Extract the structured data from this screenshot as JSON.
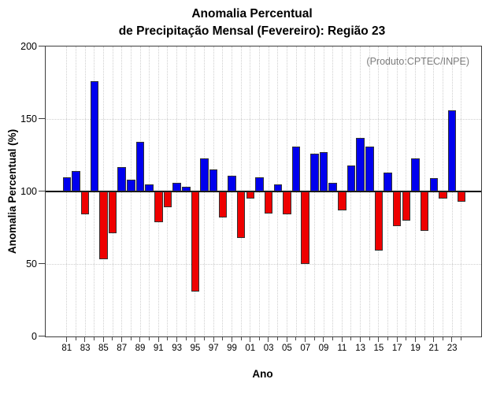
{
  "title": {
    "line1": "Anomalia Percentual",
    "line2": "de Precipitação Mensal (Fevereiro): Região 23"
  },
  "annotation": "(Produto:CPTEC/INPE)",
  "chart_data": {
    "type": "bar",
    "title": "Anomalia Percentual de Precipitação Mensal (Fevereiro): Região 23",
    "xlabel": "Ano",
    "ylabel": "Anomalia Percentual (%)",
    "ylim": [
      0,
      200
    ],
    "yticks": [
      0,
      50,
      100,
      150,
      200
    ],
    "hgrid_at": [
      50,
      150
    ],
    "baseline": 100,
    "legend_position": "none",
    "grid": "dotted vertical line per year; dotted horizontal at 50 and 150; solid black line at 100",
    "categories": [
      "1981",
      "1982",
      "1983",
      "1984",
      "1985",
      "1986",
      "1987",
      "1988",
      "1989",
      "1990",
      "1991",
      "1992",
      "1993",
      "1994",
      "1995",
      "1996",
      "1997",
      "1998",
      "1999",
      "2000",
      "2001",
      "2002",
      "2003",
      "2004",
      "2005",
      "2006",
      "2007",
      "2008",
      "2009",
      "2010",
      "2011",
      "2012",
      "2013",
      "2014",
      "2015",
      "2016",
      "2017",
      "2018",
      "2019",
      "2020",
      "2021",
      "2022",
      "2023",
      "2024"
    ],
    "x_tick_labels": [
      "81",
      "83",
      "85",
      "87",
      "89",
      "91",
      "93",
      "95",
      "97",
      "99",
      "01",
      "03",
      "05",
      "07",
      "09",
      "11",
      "13",
      "15",
      "17",
      "19",
      "21",
      "23"
    ],
    "values": [
      110,
      114,
      84,
      176,
      53,
      71,
      117,
      108,
      134,
      105,
      79,
      89,
      106,
      103,
      31,
      123,
      115,
      82,
      111,
      68,
      95,
      110,
      85,
      105,
      84,
      131,
      50,
      126,
      127,
      106,
      87,
      118,
      137,
      131,
      59,
      113,
      76,
      80,
      123,
      73,
      109,
      95,
      156,
      93
    ],
    "colors": {
      "above_baseline": "#0000EE",
      "below_baseline": "#EE0000",
      "bar_outline": "#333333",
      "gridline": "#CFCFCF",
      "annotation_text": "#7D7D7D"
    }
  }
}
